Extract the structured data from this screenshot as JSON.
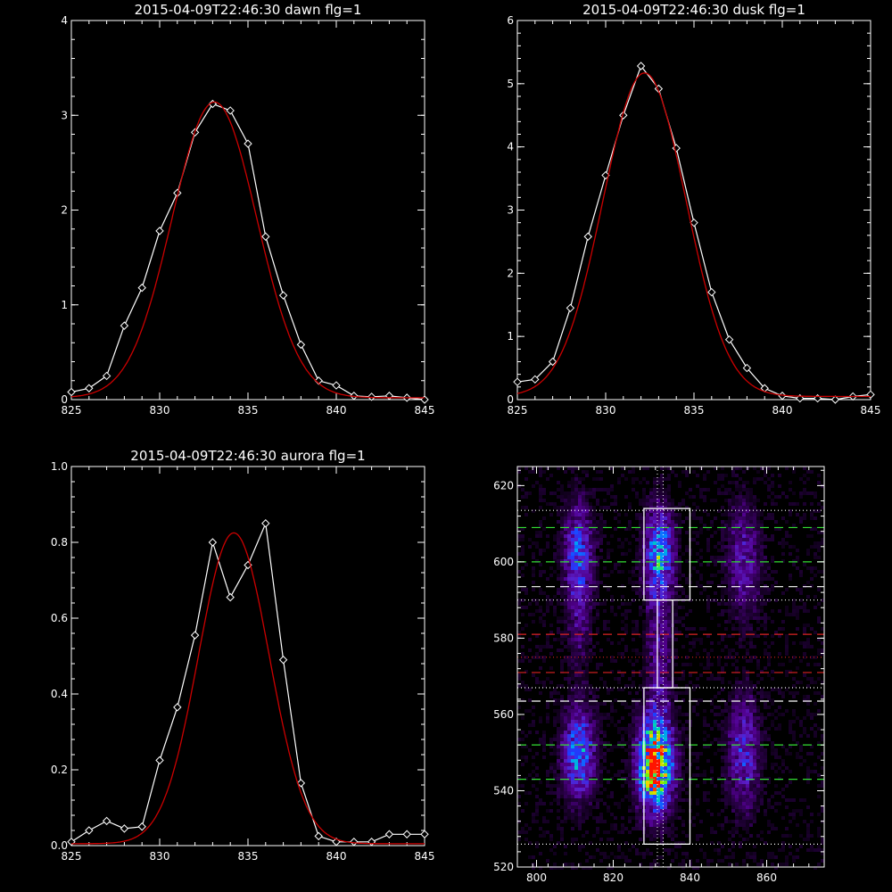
{
  "chart_data": [
    {
      "type": "line",
      "title": "2015-04-09T22:46:30 dawn flg=1",
      "xlim": [
        825,
        845
      ],
      "ylim": [
        0,
        4
      ],
      "xticks": [
        825,
        830,
        835,
        840,
        845
      ],
      "yticks": [
        0,
        1,
        2,
        3,
        4
      ],
      "series": [
        {
          "color": "#ffffff",
          "markers": "diamond",
          "x": [
            825,
            826,
            827,
            828,
            829,
            830,
            831,
            832,
            833,
            834,
            835,
            836,
            837,
            838,
            839,
            840,
            841,
            842,
            843,
            844,
            845
          ],
          "y": [
            0.08,
            0.12,
            0.25,
            0.78,
            1.18,
            1.78,
            2.18,
            2.82,
            3.12,
            3.05,
            2.7,
            1.72,
            1.1,
            0.58,
            0.2,
            0.15,
            0.04,
            0.03,
            0.04,
            0.02,
            0.0
          ]
        },
        {
          "color": "#cc0000",
          "style": "gaussian-fit",
          "amplitude": 3.12,
          "center": 833.1,
          "sigma": 2.4,
          "offset": 0.02
        }
      ]
    },
    {
      "type": "line",
      "title": "2015-04-09T22:46:30 dusk flg=1",
      "xlim": [
        825,
        845
      ],
      "ylim": [
        0,
        6
      ],
      "xticks": [
        825,
        830,
        835,
        840,
        845
      ],
      "yticks": [
        0,
        1,
        2,
        3,
        4,
        5,
        6
      ],
      "series": [
        {
          "color": "#ffffff",
          "markers": "diamond",
          "x": [
            825,
            826,
            827,
            828,
            829,
            830,
            831,
            832,
            833,
            834,
            835,
            836,
            837,
            838,
            839,
            840,
            841,
            842,
            843,
            844,
            845
          ],
          "y": [
            0.28,
            0.32,
            0.6,
            1.45,
            2.58,
            3.55,
            4.5,
            5.28,
            4.92,
            3.98,
            2.8,
            1.7,
            0.95,
            0.5,
            0.18,
            0.06,
            0.02,
            0.02,
            0.0,
            0.05,
            0.08
          ]
        },
        {
          "color": "#cc0000",
          "style": "gaussian-fit",
          "amplitude": 5.12,
          "center": 832.2,
          "sigma": 2.35,
          "offset": 0.05
        }
      ]
    },
    {
      "type": "line",
      "title": "2015-04-09T22:46:30 aurora flg=1",
      "xlim": [
        825,
        845
      ],
      "ylim": [
        0,
        1.0
      ],
      "xticks": [
        825,
        830,
        835,
        840,
        845
      ],
      "yticks": [
        0.0,
        0.2,
        0.4,
        0.6,
        0.8,
        1.0
      ],
      "ytick_labels": [
        "0.0",
        "0.2",
        "0.4",
        "0.6",
        "0.8",
        "1.0"
      ],
      "series": [
        {
          "color": "#ffffff",
          "markers": "diamond",
          "x": [
            825,
            826,
            827,
            828,
            829,
            830,
            831,
            832,
            833,
            834,
            835,
            836,
            837,
            838,
            839,
            840,
            841,
            842,
            843,
            844,
            845
          ],
          "y": [
            0.01,
            0.04,
            0.065,
            0.045,
            0.05,
            0.225,
            0.365,
            0.555,
            0.8,
            0.655,
            0.74,
            0.85,
            0.49,
            0.165,
            0.025,
            0.01,
            0.01,
            0.01,
            0.03,
            0.03,
            0.03
          ]
        },
        {
          "color": "#cc0000",
          "style": "gaussian-fit",
          "amplitude": 0.82,
          "center": 834.2,
          "sigma": 2.0,
          "offset": 0.005
        }
      ]
    },
    {
      "type": "heatmap",
      "xlim": [
        795,
        875
      ],
      "ylim": [
        520,
        625
      ],
      "xticks": [
        800,
        820,
        840,
        860
      ],
      "yticks": [
        520,
        540,
        560,
        580,
        600,
        620
      ],
      "blobs": [
        {
          "x": 811,
          "y": 602,
          "sx": 2.5,
          "sy": 9,
          "amp": 0.42
        },
        {
          "x": 811,
          "y": 550,
          "sx": 2.8,
          "sy": 8,
          "amp": 0.5
        },
        {
          "x": 811,
          "y": 582,
          "sx": 2.2,
          "sy": 7,
          "amp": 0.14
        },
        {
          "x": 832,
          "y": 602,
          "sx": 2.6,
          "sy": 8,
          "amp": 0.55
        },
        {
          "x": 831,
          "y": 547,
          "sx": 3.0,
          "sy": 8,
          "amp": 1.0
        },
        {
          "x": 832,
          "y": 575,
          "sx": 2.2,
          "sy": 12,
          "amp": 0.22
        },
        {
          "x": 854,
          "y": 601,
          "sx": 3.0,
          "sy": 10,
          "amp": 0.24
        },
        {
          "x": 854,
          "y": 550,
          "sx": 2.8,
          "sy": 10,
          "amp": 0.32
        }
      ],
      "boxes": [
        {
          "x0": 828,
          "x1": 840,
          "y0": 590,
          "y1": 614,
          "color": "#ffffff"
        },
        {
          "x0": 828,
          "x1": 840,
          "y0": 526,
          "y1": 567,
          "color": "#ffffff"
        },
        {
          "x0": 831.5,
          "x1": 835.5,
          "y0": 567,
          "y1": 590,
          "color": "#ffffff"
        }
      ],
      "hlines": [
        {
          "y": 613.5,
          "color": "#ffffff",
          "style": "dotted"
        },
        {
          "y": 609,
          "color": "#33dd33",
          "style": "dashed"
        },
        {
          "y": 600,
          "color": "#33dd33",
          "style": "dashed"
        },
        {
          "y": 593.5,
          "color": "#ffffff",
          "style": "dashed"
        },
        {
          "y": 590,
          "color": "#ffffff",
          "style": "dotted"
        },
        {
          "y": 581,
          "color": "#dd2222",
          "style": "dashed"
        },
        {
          "y": 575,
          "color": "#dd2222",
          "style": "dotted"
        },
        {
          "y": 571,
          "color": "#dd2222",
          "style": "dashed"
        },
        {
          "y": 567,
          "color": "#ffffff",
          "style": "dotted"
        },
        {
          "y": 563.5,
          "color": "#ffffff",
          "style": "dashed"
        },
        {
          "y": 552,
          "color": "#33dd33",
          "style": "dashed"
        },
        {
          "y": 543,
          "color": "#33dd33",
          "style": "dashed"
        },
        {
          "y": 526,
          "color": "#ffffff",
          "style": "dotted"
        }
      ],
      "vlines": [
        {
          "x": 831.5,
          "color": "#ffffff",
          "style": "dotted"
        },
        {
          "x": 833.0,
          "color": "#ffffff",
          "style": "dotted"
        }
      ]
    }
  ]
}
